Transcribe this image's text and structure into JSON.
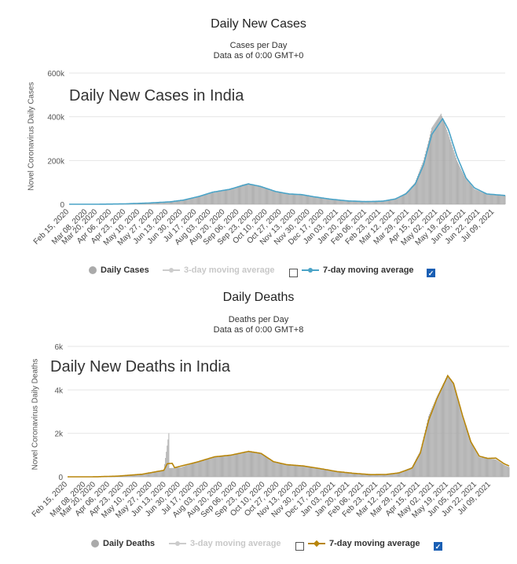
{
  "chart_data": [
    {
      "type": "bar",
      "title": "Daily New Cases",
      "subtitle": [
        "Cases per Day",
        "Data as of 0:00 GMT+0"
      ],
      "overlay_title": "Daily New Cases in India",
      "ylabel": "Novel Coronavirus Daily Cases",
      "ylim": [
        0,
        600000
      ],
      "y_ticks": [
        "0",
        "200k",
        "400k",
        "600k"
      ],
      "x_ticks": [
        "Feb 15, 2020",
        "Mar 08, 2020",
        "Mar 20, 2020",
        "Apr 06, 2020",
        "Apr 23, 2020",
        "May 10, 2020",
        "May 27, 2020",
        "Jun 13, 2020",
        "Jun 30, 2020",
        "Jul 17, 2020",
        "Aug 03, 2020",
        "Aug 20, 2020",
        "Sep 06, 2020",
        "Sep 23, 2020",
        "Oct 10, 2020",
        "Oct 27, 2020",
        "Nov 13, 2020",
        "Nov 30, 2020",
        "Dec 17, 2020",
        "Jan 03, 2021",
        "Jan 20, 2021",
        "Feb 06, 2021",
        "Feb 23, 2021",
        "Mar 12, 2021",
        "Mar 29, 2021",
        "Apr 15, 2021",
        "May 02, 2021",
        "May 19, 2021",
        "Jun 05, 2021",
        "Jun 22, 2021",
        "Jul 09, 2021"
      ],
      "x_start": "2020-02-15",
      "x_end": "2021-07-22",
      "series": [
        {
          "name": "Daily Cases",
          "color": "#aaaaaa",
          "anchors": [
            [
              "2020-02-15",
              0
            ],
            [
              "2020-03-20",
              50
            ],
            [
              "2020-04-20",
              1500
            ],
            [
              "2020-05-20",
              5500
            ],
            [
              "2020-06-15",
              11000
            ],
            [
              "2020-07-01",
              19000
            ],
            [
              "2020-07-20",
              38000
            ],
            [
              "2020-08-05",
              52000
            ],
            [
              "2020-08-25",
              67000
            ],
            [
              "2020-09-10",
              90000
            ],
            [
              "2020-09-17",
              96000
            ],
            [
              "2020-10-01",
              80000
            ],
            [
              "2020-10-20",
              58000
            ],
            [
              "2020-11-05",
              47000
            ],
            [
              "2020-11-20",
              44000
            ],
            [
              "2020-12-05",
              35000
            ],
            [
              "2020-12-25",
              23000
            ],
            [
              "2021-01-15",
              15000
            ],
            [
              "2021-02-05",
              12000
            ],
            [
              "2021-02-25",
              14000
            ],
            [
              "2021-03-12",
              24000
            ],
            [
              "2021-03-25",
              52000
            ],
            [
              "2021-04-05",
              100000
            ],
            [
              "2021-04-15",
              200000
            ],
            [
              "2021-04-25",
              350000
            ],
            [
              "2021-05-06",
              414000
            ],
            [
              "2021-05-15",
              320000
            ],
            [
              "2021-05-25",
              200000
            ],
            [
              "2021-06-05",
              115000
            ],
            [
              "2021-06-15",
              70000
            ],
            [
              "2021-06-30",
              45000
            ],
            [
              "2021-07-22",
              40000
            ]
          ]
        },
        {
          "name": "7-day moving average",
          "color": "#4aa3c7",
          "anchors": [
            [
              "2020-02-15",
              0
            ],
            [
              "2020-03-20",
              50
            ],
            [
              "2020-04-20",
              1500
            ],
            [
              "2020-05-20",
              5500
            ],
            [
              "2020-06-15",
              11000
            ],
            [
              "2020-07-01",
              19000
            ],
            [
              "2020-07-20",
              36000
            ],
            [
              "2020-08-05",
              55000
            ],
            [
              "2020-08-25",
              68000
            ],
            [
              "2020-09-17",
              93000
            ],
            [
              "2020-10-01",
              82000
            ],
            [
              "2020-10-20",
              58000
            ],
            [
              "2020-11-05",
              47000
            ],
            [
              "2020-11-20",
              44000
            ],
            [
              "2020-12-05",
              34000
            ],
            [
              "2020-12-25",
              23000
            ],
            [
              "2021-01-15",
              15000
            ],
            [
              "2021-02-05",
              12000
            ],
            [
              "2021-02-25",
              14000
            ],
            [
              "2021-03-12",
              24000
            ],
            [
              "2021-03-25",
              48000
            ],
            [
              "2021-04-05",
              92000
            ],
            [
              "2021-04-15",
              180000
            ],
            [
              "2021-04-25",
              320000
            ],
            [
              "2021-05-08",
              391000
            ],
            [
              "2021-05-15",
              340000
            ],
            [
              "2021-05-25",
              220000
            ],
            [
              "2021-06-05",
              120000
            ],
            [
              "2021-06-15",
              75000
            ],
            [
              "2021-06-30",
              47000
            ],
            [
              "2021-07-22",
              40000
            ]
          ]
        },
        {
          "name": "3-day moving average",
          "color": "#cccccc"
        }
      ],
      "legend": {
        "daily": "Daily Cases",
        "ma3": "3-day moving average",
        "ma7": "7-day moving average",
        "ma3_checked": false,
        "ma7_checked": true
      }
    },
    {
      "type": "bar",
      "title": "Daily Deaths",
      "subtitle": [
        "Deaths per Day",
        "Data as of 0:00 GMT+8"
      ],
      "overlay_title": "Daily New Deaths in India",
      "ylabel": "Novel Coronavirus Daily Deaths",
      "ylim": [
        0,
        6000
      ],
      "y_ticks": [
        "0",
        "2k",
        "4k",
        "6k"
      ],
      "x_ticks": [
        "Feb 15, 2020",
        "Mar 08, 2020",
        "Mar 20, 2020",
        "Apr 06, 2020",
        "Apr 23, 2020",
        "May 10, 2020",
        "May 27, 2020",
        "Jun 13, 2020",
        "Jun 30, 2020",
        "Jul 17, 2020",
        "Aug 03, 2020",
        "Aug 20, 2020",
        "Sep 06, 2020",
        "Sep 23, 2020",
        "Oct 10, 2020",
        "Oct 27, 2020",
        "Nov 13, 2020",
        "Nov 30, 2020",
        "Dec 17, 2020",
        "Jan 03, 2021",
        "Jan 20, 2021",
        "Feb 06, 2021",
        "Feb 23, 2021",
        "Mar 12, 2021",
        "Mar 29, 2021",
        "Apr 15, 2021",
        "May 02, 2021",
        "May 19, 2021",
        "Jun 05, 2021",
        "Jun 22, 2021",
        "Jul 09, 2021"
      ],
      "x_start": "2020-02-15",
      "x_end": "2021-07-31",
      "series": [
        {
          "name": "Daily Deaths",
          "color": "#aaaaaa",
          "anchors": [
            [
              "2020-02-15",
              0
            ],
            [
              "2020-03-20",
              2
            ],
            [
              "2020-04-15",
              30
            ],
            [
              "2020-05-15",
              120
            ],
            [
              "2020-06-10",
              300
            ],
            [
              "2020-06-16",
              2003
            ],
            [
              "2020-06-17",
              400
            ],
            [
              "2020-06-30",
              430
            ],
            [
              "2020-07-20",
              680
            ],
            [
              "2020-08-10",
              920
            ],
            [
              "2020-08-30",
              1000
            ],
            [
              "2020-09-20",
              1150
            ],
            [
              "2020-10-05",
              1080
            ],
            [
              "2020-10-20",
              700
            ],
            [
              "2020-11-05",
              560
            ],
            [
              "2020-11-25",
              500
            ],
            [
              "2020-12-15",
              380
            ],
            [
              "2021-01-05",
              240
            ],
            [
              "2021-01-25",
              160
            ],
            [
              "2021-02-15",
              100
            ],
            [
              "2021-03-05",
              110
            ],
            [
              "2021-03-20",
              180
            ],
            [
              "2021-04-05",
              450
            ],
            [
              "2021-04-15",
              1200
            ],
            [
              "2021-04-25",
              2800
            ],
            [
              "2021-05-05",
              3700
            ],
            [
              "2021-05-18",
              4700
            ],
            [
              "2021-05-25",
              4300
            ],
            [
              "2021-06-05",
              2800
            ],
            [
              "2021-06-15",
              1600
            ],
            [
              "2021-06-25",
              900
            ],
            [
              "2021-07-05",
              850
            ],
            [
              "2021-07-15",
              800
            ],
            [
              "2021-07-25",
              550
            ],
            [
              "2021-07-31",
              450
            ]
          ]
        },
        {
          "name": "7-day moving average",
          "color": "#b8860b",
          "anchors": [
            [
              "2020-02-15",
              0
            ],
            [
              "2020-03-20",
              2
            ],
            [
              "2020-04-15",
              30
            ],
            [
              "2020-05-15",
              120
            ],
            [
              "2020-06-10",
              300
            ],
            [
              "2020-06-14",
              600
            ],
            [
              "2020-06-20",
              620
            ],
            [
              "2020-06-23",
              420
            ],
            [
              "2020-07-20",
              680
            ],
            [
              "2020-08-10",
              920
            ],
            [
              "2020-08-30",
              1000
            ],
            [
              "2020-09-20",
              1170
            ],
            [
              "2020-10-05",
              1080
            ],
            [
              "2020-10-20",
              700
            ],
            [
              "2020-11-05",
              560
            ],
            [
              "2020-11-25",
              500
            ],
            [
              "2020-12-15",
              380
            ],
            [
              "2021-01-05",
              240
            ],
            [
              "2021-01-25",
              160
            ],
            [
              "2021-02-15",
              100
            ],
            [
              "2021-03-05",
              110
            ],
            [
              "2021-03-20",
              180
            ],
            [
              "2021-04-05",
              400
            ],
            [
              "2021-04-15",
              1100
            ],
            [
              "2021-04-25",
              2600
            ],
            [
              "2021-05-05",
              3600
            ],
            [
              "2021-05-18",
              4650
            ],
            [
              "2021-05-25",
              4300
            ],
            [
              "2021-06-05",
              2800
            ],
            [
              "2021-06-15",
              1600
            ],
            [
              "2021-06-25",
              950
            ],
            [
              "2021-07-05",
              850
            ],
            [
              "2021-07-15",
              860
            ],
            [
              "2021-07-25",
              600
            ],
            [
              "2021-07-31",
              500
            ]
          ]
        },
        {
          "name": "3-day moving average",
          "color": "#cccccc"
        }
      ],
      "legend": {
        "daily": "Daily Deaths",
        "ma3": "3-day moving average",
        "ma7": "7-day moving average",
        "ma3_checked": false,
        "ma7_checked": true
      }
    }
  ]
}
